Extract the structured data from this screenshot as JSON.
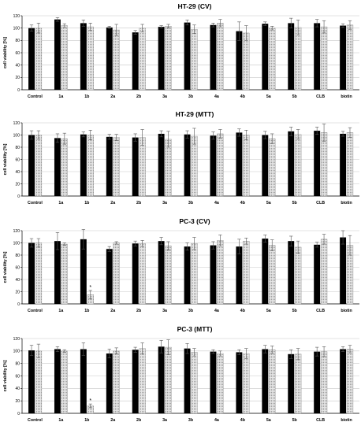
{
  "chart_data": [
    {
      "type": "bar",
      "title": "HT-29 (CV)",
      "ylabel": "cell viability [%]",
      "ylim": [
        0,
        120
      ],
      "yticks": [
        "0",
        "20",
        "40",
        "60",
        "80",
        "100",
        "120"
      ],
      "categories": [
        "Control",
        "1a",
        "1b",
        "2a",
        "2b",
        "3a",
        "3b",
        "4a",
        "4b",
        "5a",
        "5b",
        "CLB",
        "biotin"
      ],
      "series": [
        {
          "fill": "#000000",
          "values": [
            100,
            114,
            108,
            101,
            93,
            102,
            109,
            105,
            95,
            107,
            108,
            108,
            104
          ],
          "errors": [
            5,
            3,
            5,
            2,
            3,
            2,
            4,
            3,
            15,
            3,
            8,
            6,
            3
          ]
        },
        {
          "fill": "#d4d4d4",
          "values": [
            100,
            104,
            102,
            97,
            100,
            103,
            98,
            108,
            92,
            100,
            101,
            102,
            105
          ],
          "errors": [
            8,
            3,
            6,
            9,
            6,
            3,
            7,
            6,
            12,
            3,
            12,
            10,
            7
          ]
        }
      ],
      "markers": [],
      "grid": true
    },
    {
      "type": "bar",
      "title": "HT-29 (MTT)",
      "ylabel": "cell viability [%]",
      "ylim": [
        0,
        120
      ],
      "yticks": [
        "0",
        "20",
        "40",
        "60",
        "80",
        "100",
        "120"
      ],
      "categories": [
        "Control",
        "1a",
        "1b",
        "2a",
        "2b",
        "3a",
        "3b",
        "4a",
        "4b",
        "5a",
        "5b",
        "CLB",
        "biotin"
      ],
      "series": [
        {
          "fill": "#000000",
          "values": [
            100,
            95,
            101,
            97,
            96,
            102,
            101,
            99,
            104,
            100,
            106,
            107,
            102
          ]
        },
        {
          "fill": "#d4d4d4",
          "values": [
            100,
            94,
            100,
            96,
            96,
            93,
            98,
            102,
            100,
            94,
            101,
            104,
            104
          ]
        }
      ],
      "errors": [
        [
          7,
          7,
          4,
          4,
          6,
          5,
          6,
          6,
          6,
          6,
          7,
          6,
          4
        ],
        [
          7,
          9,
          8,
          5,
          13,
          13,
          13,
          7,
          8,
          8,
          8,
          14,
          8
        ]
      ],
      "markers": [],
      "grid": true
    },
    {
      "type": "bar",
      "title": "PC-3 (CV)",
      "ylabel": "cell viability [%]",
      "ylim": [
        0,
        120
      ],
      "yticks": [
        "0",
        "20",
        "40",
        "60",
        "80",
        "100",
        "120"
      ],
      "categories": [
        "Control",
        "1a",
        "1b",
        "2a",
        "2b",
        "3a",
        "3b",
        "4a",
        "4b",
        "5a",
        "5b",
        "CLB",
        "biotin"
      ],
      "series": [
        {
          "fill": "#000000",
          "values": [
            100,
            103,
            106,
            90,
            99,
            103,
            94,
            96,
            94,
            107,
            103,
            97,
            109
          ]
        },
        {
          "fill": "#d4d4d4",
          "values": [
            100,
            98,
            15,
            100,
            99,
            95,
            99,
            104,
            103,
            96,
            93,
            106,
            96
          ]
        }
      ],
      "errors": [
        [
          7,
          14,
          16,
          4,
          4,
          6,
          6,
          6,
          12,
          6,
          8,
          4,
          11
        ],
        [
          7,
          2,
          7,
          2,
          5,
          7,
          10,
          9,
          5,
          9,
          10,
          8,
          16
        ]
      ],
      "markers": [
        {
          "category": "1b",
          "series": 1,
          "text": "*"
        }
      ],
      "grid": true
    },
    {
      "type": "bar",
      "title": "PC-3 (MTT)",
      "ylabel": "cell viability [%]",
      "ylim": [
        0,
        120
      ],
      "yticks": [
        "0",
        "20",
        "40",
        "60",
        "80",
        "100",
        "120"
      ],
      "categories": [
        "Control",
        "1a",
        "1b",
        "2a",
        "2b",
        "3a",
        "3b",
        "4a",
        "4b",
        "5a",
        "5b",
        "CLB",
        "biotin"
      ],
      "series": [
        {
          "fill": "#000000",
          "values": [
            101,
            103,
            103,
            96,
            102,
            107,
            104,
            99,
            98,
            103,
            95,
            99,
            103
          ]
        },
        {
          "fill": "#d4d4d4",
          "values": [
            100,
            100,
            12,
            100,
            104,
            106,
            98,
            96,
            96,
            102,
            95,
            99,
            103
          ]
        }
      ],
      "errors": [
        [
          8,
          4,
          10,
          7,
          4,
          10,
          8,
          3,
          4,
          6,
          7,
          7,
          4
        ],
        [
          11,
          2,
          3,
          5,
          9,
          12,
          6,
          4,
          8,
          6,
          9,
          8,
          6
        ]
      ],
      "markers": [
        {
          "category": "1b",
          "series": 1,
          "text": "*"
        }
      ],
      "grid": true
    }
  ]
}
